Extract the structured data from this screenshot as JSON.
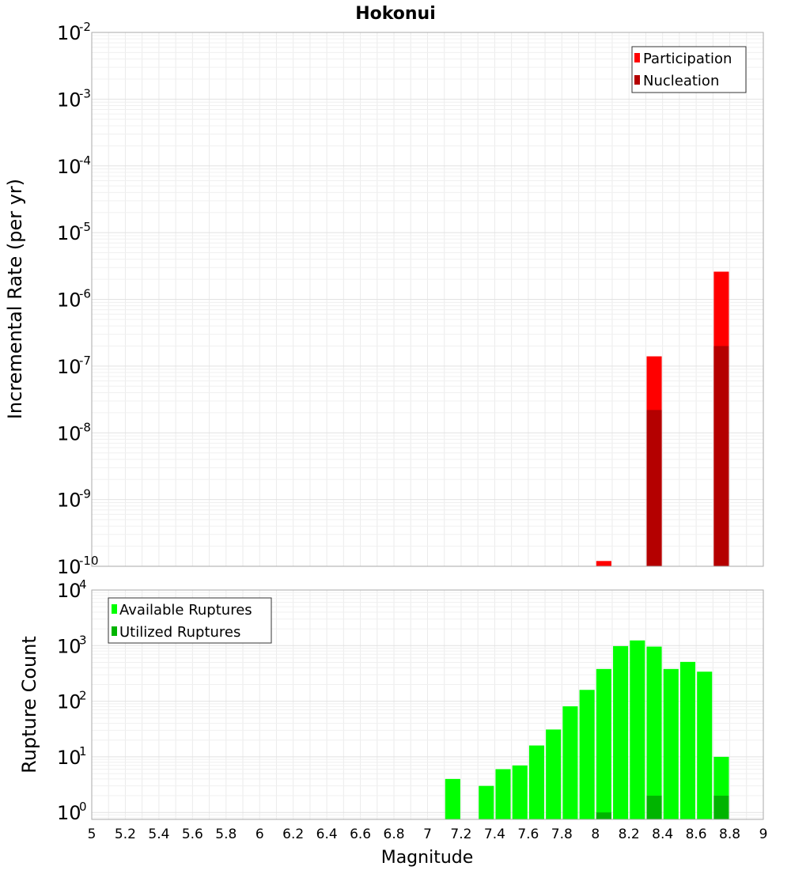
{
  "chart_data": [
    {
      "type": "bar",
      "title": "Hokonui",
      "ylabel": "Incremental Rate (per yr)",
      "xlabel": "",
      "xlim": [
        5,
        9
      ],
      "ylim": [
        1e-10,
        0.01
      ],
      "yscale": "log",
      "grid": true,
      "legend_position": "top-right",
      "bar_width": 0.09,
      "ytick_labels": [
        {
          "value": 0.01,
          "base": "10",
          "exp": "-2"
        },
        {
          "value": 0.001,
          "base": "10",
          "exp": "-3"
        },
        {
          "value": 0.0001,
          "base": "10",
          "exp": "-4"
        },
        {
          "value": 1e-05,
          "base": "10",
          "exp": "-5"
        },
        {
          "value": 1e-06,
          "base": "10",
          "exp": "-6"
        },
        {
          "value": 1e-07,
          "base": "10",
          "exp": "-7"
        },
        {
          "value": 1e-08,
          "base": "10",
          "exp": "-8"
        },
        {
          "value": 1e-09,
          "base": "10",
          "exp": "-9"
        },
        {
          "value": 1e-10,
          "base": "10",
          "exp": "-10"
        }
      ],
      "series": [
        {
          "name": "Participation",
          "color": "#ff0000",
          "points": [
            {
              "x": 8.05,
              "y": 1.2e-10
            },
            {
              "x": 8.35,
              "y": 1.4e-07
            },
            {
              "x": 8.75,
              "y": 2.6e-06
            }
          ]
        },
        {
          "name": "Nucleation",
          "color": "#b40000",
          "points": [
            {
              "x": 8.35,
              "y": 2.2e-08
            },
            {
              "x": 8.75,
              "y": 2e-07
            }
          ]
        }
      ]
    },
    {
      "type": "bar",
      "title": "",
      "ylabel": "Rupture Count",
      "xlabel": "Magnitude",
      "xlim": [
        5,
        9
      ],
      "ylim": [
        0.75,
        10000
      ],
      "yscale": "log",
      "grid": true,
      "legend_position": "top-left",
      "bar_width": 0.09,
      "ytick_labels": [
        {
          "value": 10000,
          "base": "10",
          "exp": "4"
        },
        {
          "value": 1000,
          "base": "10",
          "exp": "3"
        },
        {
          "value": 100,
          "base": "10",
          "exp": "2"
        },
        {
          "value": 10,
          "base": "10",
          "exp": "1"
        },
        {
          "value": 1,
          "base": "10",
          "exp": "0"
        }
      ],
      "xtick_labels": [
        "5",
        "5.2",
        "5.4",
        "5.6",
        "5.8",
        "6",
        "6.2",
        "6.4",
        "6.6",
        "6.8",
        "7",
        "7.2",
        "7.4",
        "7.6",
        "7.8",
        "8",
        "8.2",
        "8.4",
        "8.6",
        "8.8",
        "9"
      ],
      "series": [
        {
          "name": "Available Ruptures",
          "color": "#00ff00",
          "points": [
            {
              "x": 7.15,
              "y": 4
            },
            {
              "x": 7.35,
              "y": 3
            },
            {
              "x": 7.45,
              "y": 6
            },
            {
              "x": 7.55,
              "y": 7
            },
            {
              "x": 7.65,
              "y": 16
            },
            {
              "x": 7.75,
              "y": 31
            },
            {
              "x": 7.85,
              "y": 81
            },
            {
              "x": 7.95,
              "y": 160
            },
            {
              "x": 8.05,
              "y": 380
            },
            {
              "x": 8.15,
              "y": 980
            },
            {
              "x": 8.25,
              "y": 1240
            },
            {
              "x": 8.35,
              "y": 960
            },
            {
              "x": 8.45,
              "y": 380
            },
            {
              "x": 8.55,
              "y": 510
            },
            {
              "x": 8.65,
              "y": 340
            },
            {
              "x": 8.75,
              "y": 10
            }
          ]
        },
        {
          "name": "Utilized Ruptures",
          "color": "#00b400",
          "points": [
            {
              "x": 8.05,
              "y": 1
            },
            {
              "x": 8.35,
              "y": 2
            },
            {
              "x": 8.75,
              "y": 2
            }
          ]
        }
      ]
    }
  ]
}
